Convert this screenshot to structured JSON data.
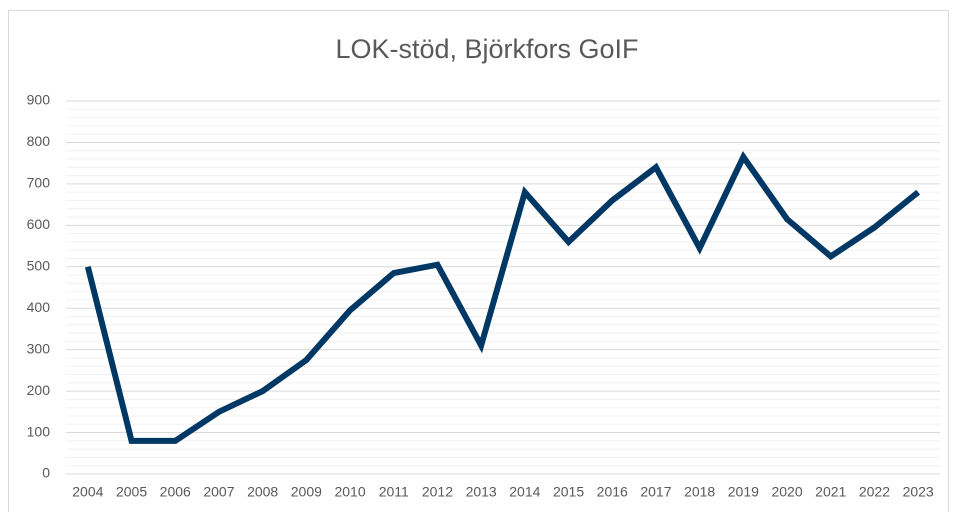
{
  "chart_data": {
    "type": "line",
    "title": "LOK-stöd, Björkfors GoIF",
    "categories": [
      "2004",
      "2005",
      "2006",
      "2007",
      "2008",
      "2009",
      "2010",
      "2011",
      "2012",
      "2013",
      "2014",
      "2015",
      "2016",
      "2017",
      "2018",
      "2019",
      "2020",
      "2021",
      "2022",
      "2023"
    ],
    "series": [
      {
        "name": "LOK-stöd",
        "color": "#003865",
        "values": [
          500,
          80,
          80,
          150,
          200,
          275,
          395,
          485,
          505,
          310,
          680,
          560,
          660,
          740,
          545,
          765,
          615,
          525,
          595,
          680
        ]
      }
    ],
    "ylim": [
      0,
      900
    ],
    "yticks": [
      0,
      100,
      200,
      300,
      400,
      500,
      600,
      700,
      800,
      900
    ],
    "grid": true,
    "minor_grid": true,
    "legend": false
  }
}
